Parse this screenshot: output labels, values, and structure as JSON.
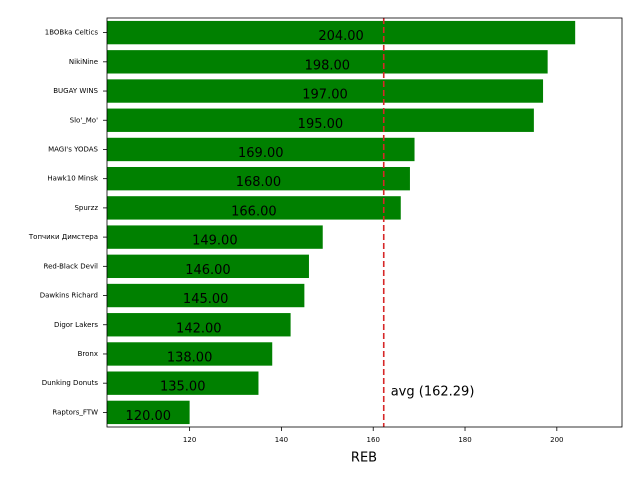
{
  "chart_data": {
    "type": "barh",
    "categories": [
      "1BOBka Celtics",
      "NikiNine",
      "BUGAY WINS",
      "Slo'_Mo'",
      "MAGI's YODAS",
      "Hawk10 Minsk",
      "Spurzz",
      "Топчики Димстера",
      "Red-Black Devil",
      "Dawkins Richard",
      "Digor Lakers",
      "Bronx",
      "Dunking Donuts",
      "Raptors_FTW"
    ],
    "values": [
      204,
      198,
      197,
      195,
      169,
      168,
      166,
      149,
      146,
      145,
      142,
      138,
      135,
      120
    ],
    "value_labels": [
      "204.00",
      "198.00",
      "197.00",
      "195.00",
      "169.00",
      "168.00",
      "166.00",
      "149.00",
      "146.00",
      "145.00",
      "142.00",
      "138.00",
      "135.00",
      "120.00"
    ],
    "color": "#008000",
    "xlabel": "REB",
    "xlim": [
      102,
      214.2
    ],
    "xticks": [
      120,
      140,
      160,
      180,
      200
    ],
    "avg_line": {
      "value": 162.29,
      "label": "avg (162.29)",
      "color": "#d62728"
    }
  }
}
